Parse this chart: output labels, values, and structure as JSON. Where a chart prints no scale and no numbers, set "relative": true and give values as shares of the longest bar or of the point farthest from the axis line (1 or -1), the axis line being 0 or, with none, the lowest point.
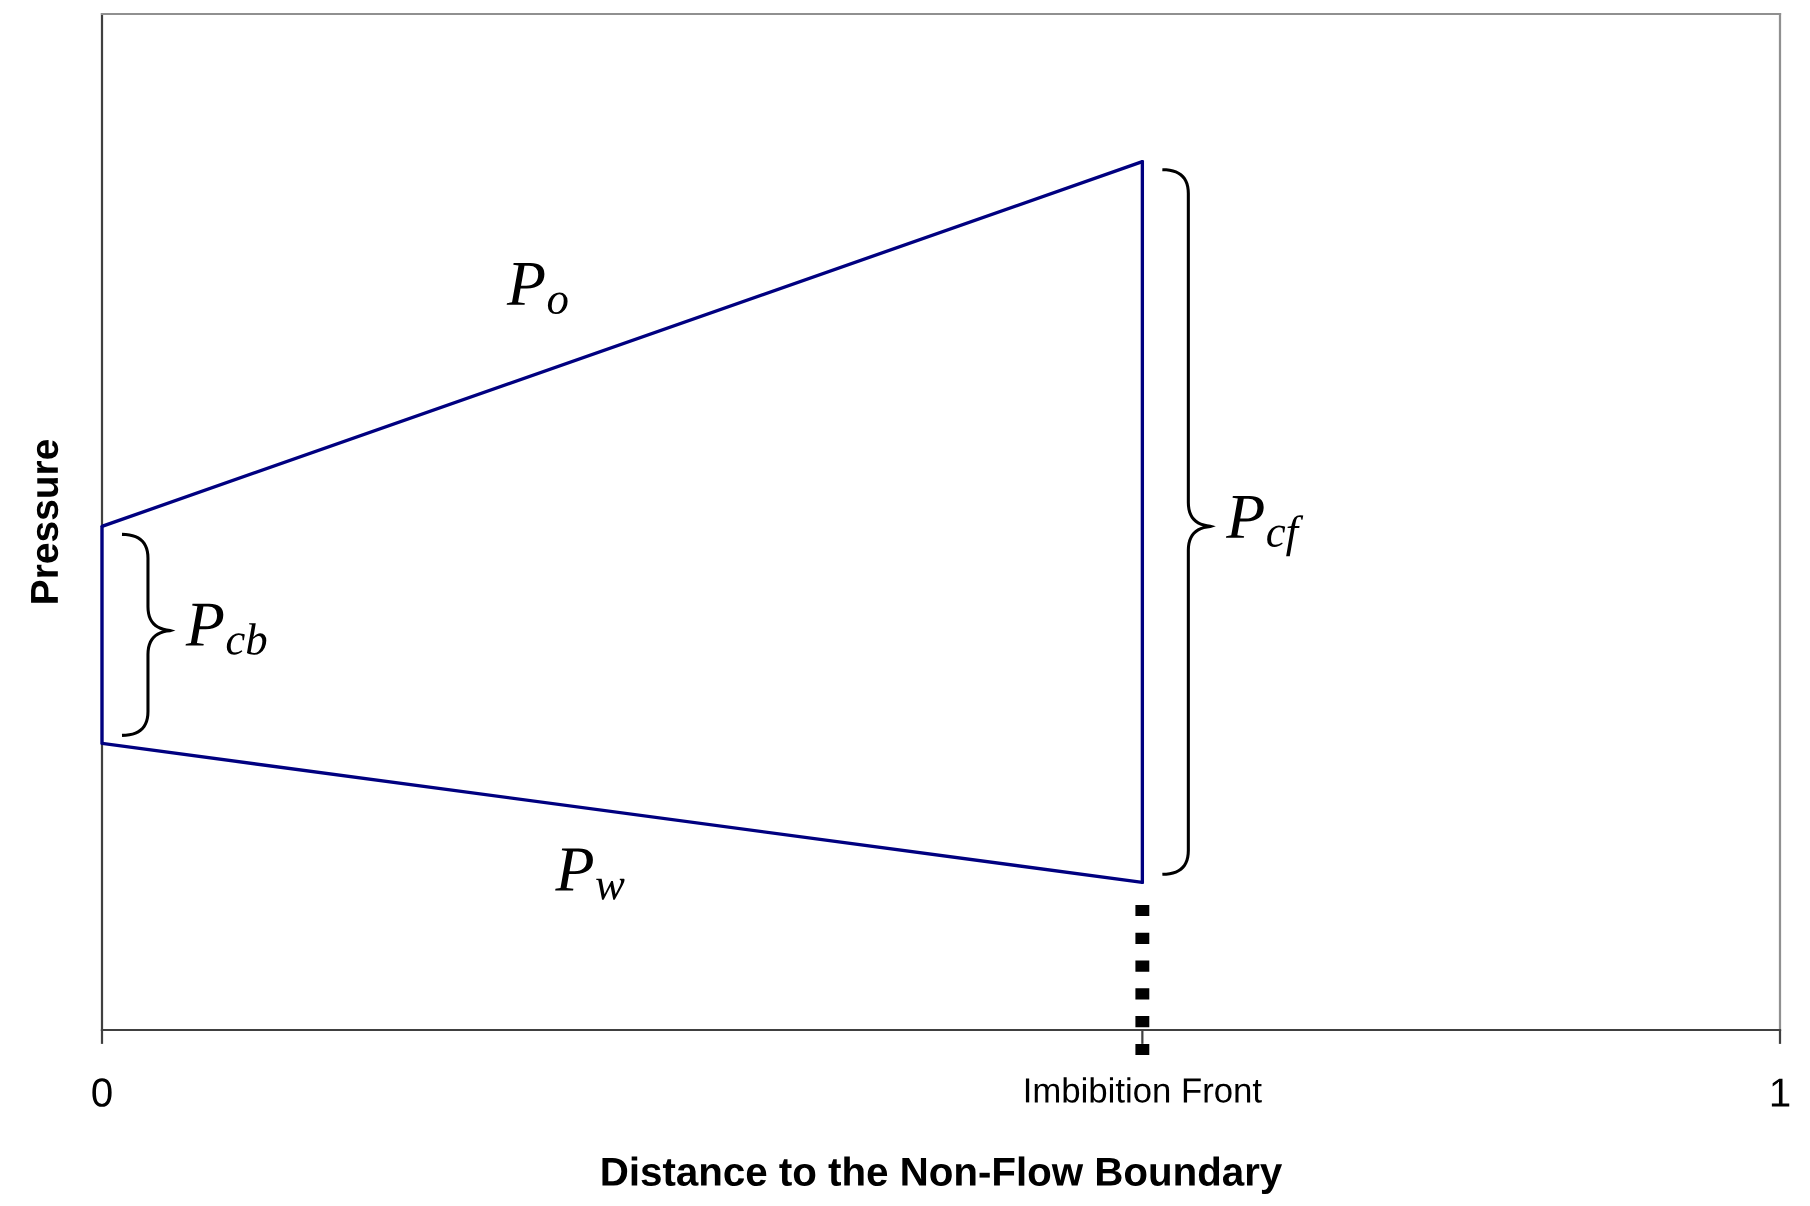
{
  "chart_data": {
    "type": "line",
    "xlabel": "Distance to the Non-Flow Boundary",
    "ylabel": "Pressure",
    "relative": true,
    "xlim": [
      0,
      1
    ],
    "xticks": [
      0,
      {
        "value": 0.62,
        "label": "Imbibition Front"
      },
      1
    ],
    "x": [
      0,
      0.62
    ],
    "series": [
      {
        "name": "P$_{o}$",
        "color": "#000080",
        "values": [
          0.58,
          1
        ]
      },
      {
        "name": "P$_{w}$",
        "color": "#000080",
        "values": [
          0.33,
          0.17
        ]
      }
    ],
    "ref_lines": [
      {
        "axis": "x",
        "value": 0,
        "color": "#000080"
      },
      {
        "axis": "x",
        "value": 0.62,
        "color": "#000080"
      },
      {
        "axis": "x",
        "value": 0.62,
        "color": "#000000",
        "line_style": "dotted"
      }
    ],
    "annotations": [
      {
        "text": "P$_{cb}$",
        "x": 0,
        "y": 0.46
      },
      {
        "text": "P$_{cf}$",
        "x": 0.62,
        "y": 0.58
      }
    ]
  }
}
